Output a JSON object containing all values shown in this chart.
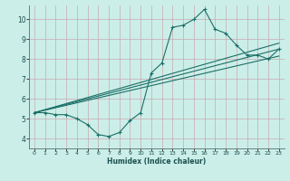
{
  "xlabel": "Humidex (Indice chaleur)",
  "xlim": [
    -0.5,
    23.5
  ],
  "ylim": [
    3.5,
    10.7
  ],
  "yticks": [
    4,
    5,
    6,
    7,
    8,
    9,
    10
  ],
  "xticks": [
    0,
    1,
    2,
    3,
    4,
    5,
    6,
    7,
    8,
    9,
    10,
    11,
    12,
    13,
    14,
    15,
    16,
    17,
    18,
    19,
    20,
    21,
    22,
    23
  ],
  "bg_color": "#cceee8",
  "grid_color": "#c8a8b0",
  "line_color": "#1a7068",
  "marker_color": "#1a7068",
  "series_main": {
    "x": [
      0,
      1,
      2,
      3,
      4,
      5,
      6,
      7,
      8,
      9,
      10,
      11,
      12,
      13,
      14,
      15,
      16,
      17,
      18,
      19,
      20,
      21,
      22,
      23
    ],
    "y": [
      5.3,
      5.3,
      5.2,
      5.2,
      5.0,
      4.7,
      4.2,
      4.1,
      4.3,
      4.9,
      5.3,
      7.3,
      7.8,
      9.6,
      9.7,
      10.0,
      10.5,
      9.5,
      9.3,
      8.7,
      8.2,
      8.2,
      8.0,
      8.5
    ]
  },
  "series_lines": [
    {
      "x0": 0,
      "y0": 5.3,
      "x1": 23,
      "y1": 8.5
    },
    {
      "x0": 0,
      "y0": 5.3,
      "x1": 23,
      "y1": 8.15
    },
    {
      "x0": 0,
      "y0": 5.3,
      "x1": 23,
      "y1": 8.8
    }
  ]
}
